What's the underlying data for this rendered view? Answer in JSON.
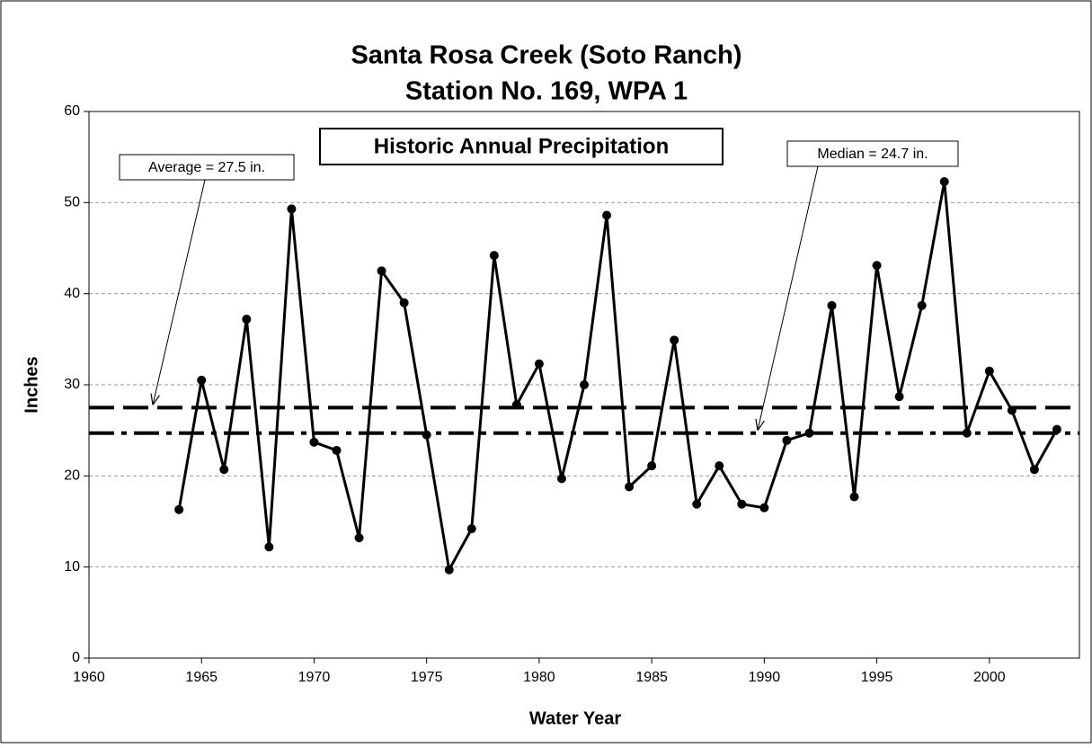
{
  "chart_data": {
    "type": "line",
    "title": "Santa Rosa Creek (Soto Ranch)",
    "subtitle": "Station No. 169, WPA 1",
    "annotation": "Historic Annual Precipitation",
    "xlabel": "Water Year",
    "ylabel": "Inches",
    "x": [
      1964,
      1965,
      1966,
      1967,
      1968,
      1969,
      1970,
      1971,
      1972,
      1973,
      1974,
      1975,
      1976,
      1977,
      1978,
      1979,
      1980,
      1981,
      1982,
      1983,
      1984,
      1985,
      1986,
      1987,
      1988,
      1989,
      1990,
      1991,
      1992,
      1993,
      1994,
      1995,
      1996,
      1997,
      1998,
      1999,
      2000,
      2001,
      2002,
      2003
    ],
    "series": [
      {
        "color": "#000000",
        "values": [
          16.3,
          30.5,
          20.7,
          37.2,
          12.2,
          49.3,
          23.7,
          22.8,
          13.2,
          42.5,
          39.0,
          24.5,
          9.7,
          14.2,
          44.2,
          27.8,
          32.3,
          19.7,
          30.0,
          48.6,
          18.8,
          21.1,
          34.9,
          16.9,
          21.1,
          16.9,
          16.5,
          23.9,
          24.7,
          38.7,
          17.7,
          43.1,
          28.7,
          38.7,
          52.3,
          24.7,
          31.5,
          27.2,
          20.7,
          25.1
        ]
      }
    ],
    "reference_lines": [
      {
        "value": 27.5,
        "label": "Average = 27.5 in.",
        "style": "dashed"
      },
      {
        "value": 24.7,
        "label": "Median = 24.7 in.",
        "style": "dashdot"
      }
    ],
    "xlim": [
      1960,
      2004
    ],
    "xticks": [
      1960,
      1965,
      1970,
      1975,
      1980,
      1985,
      1990,
      1995,
      2000
    ],
    "ylim": [
      0,
      60
    ],
    "yticks": [
      0,
      10,
      20,
      30,
      40,
      50,
      60
    ],
    "grid": true
  }
}
